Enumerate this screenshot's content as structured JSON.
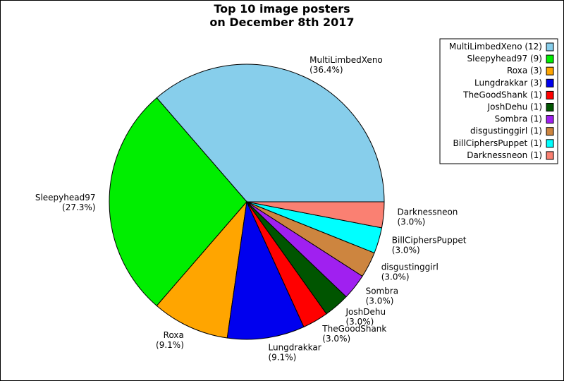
{
  "chart_data": {
    "type": "pie",
    "title": [
      "Top 10 image posters",
      "on December 8th 2017"
    ],
    "slices": [
      {
        "name": "MultiLimbedXeno",
        "value": 12,
        "percent": "36.4%",
        "legend": "MultiLimbedXeno (12)",
        "color": "#87ceeb"
      },
      {
        "name": "Sleepyhead97",
        "value": 9,
        "percent": "27.3%",
        "legend": "Sleepyhead97 (9)",
        "color": "#00ee00"
      },
      {
        "name": "Roxa",
        "value": 3,
        "percent": "9.1%",
        "legend": "Roxa (3)",
        "color": "#ffa500"
      },
      {
        "name": "Lungdrakkar",
        "value": 3,
        "percent": "9.1%",
        "legend": "Lungdrakkar (3)",
        "color": "#0000ee"
      },
      {
        "name": "TheGoodShank",
        "value": 1,
        "percent": "3.0%",
        "legend": "TheGoodShank (1)",
        "color": "#ff0000"
      },
      {
        "name": "JoshDehu",
        "value": 1,
        "percent": "3.0%",
        "legend": "JoshDehu (1)",
        "color": "#005500"
      },
      {
        "name": "Sombra",
        "value": 1,
        "percent": "3.0%",
        "legend": "Sombra (1)",
        "color": "#a020f0"
      },
      {
        "name": "disgustinggirl",
        "value": 1,
        "percent": "3.0%",
        "legend": "disgustinggirl (1)",
        "color": "#cd853f"
      },
      {
        "name": "BillCiphersPuppet",
        "value": 1,
        "percent": "3.0%",
        "legend": "BillCiphersPuppet (1)",
        "color": "#00ffff"
      },
      {
        "name": "Darknessneon",
        "value": 1,
        "percent": "3.0%",
        "legend": "Darknessneon (1)",
        "color": "#fa8072"
      }
    ],
    "start_angle_deg": 0,
    "direction": "counterclockwise",
    "legend_position": "top-right",
    "grid": false
  }
}
